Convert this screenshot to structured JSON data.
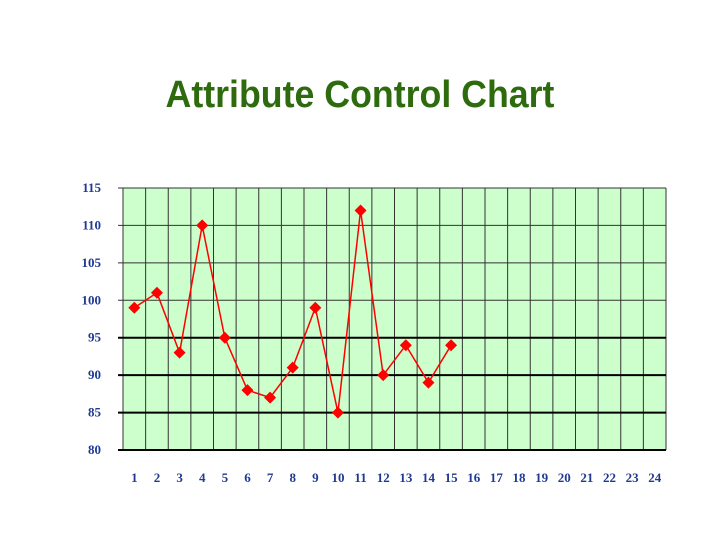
{
  "title": "Attribute Control Chart",
  "colors": {
    "title": "#2e6b0e",
    "plot_background": "#ccffcc",
    "series": "#ff0000",
    "tick_labels": "#1f3a93",
    "grid_minor": "#333333",
    "grid_major": "#000000"
  },
  "chart_data": {
    "type": "line",
    "title": "Attribute Control Chart",
    "xlabel": "",
    "ylabel": "",
    "x_ticks": [
      1,
      2,
      3,
      4,
      5,
      6,
      7,
      8,
      9,
      10,
      11,
      12,
      13,
      14,
      15,
      16,
      17,
      18,
      19,
      20,
      21,
      22,
      23,
      24
    ],
    "y_ticks": [
      80,
      85,
      90,
      95,
      100,
      105,
      110,
      115
    ],
    "xlim": [
      0.5,
      24.5
    ],
    "ylim": [
      80,
      115
    ],
    "grid": true,
    "legend": "none",
    "series": [
      {
        "x": [
          1,
          2,
          3,
          4,
          5,
          6,
          7,
          8,
          9,
          10,
          11,
          12,
          13,
          14,
          15
        ],
        "values": [
          99,
          101,
          93,
          110,
          95,
          88,
          87,
          91,
          99,
          85,
          112,
          90,
          94,
          89,
          94
        ],
        "marker": "diamond"
      }
    ]
  }
}
